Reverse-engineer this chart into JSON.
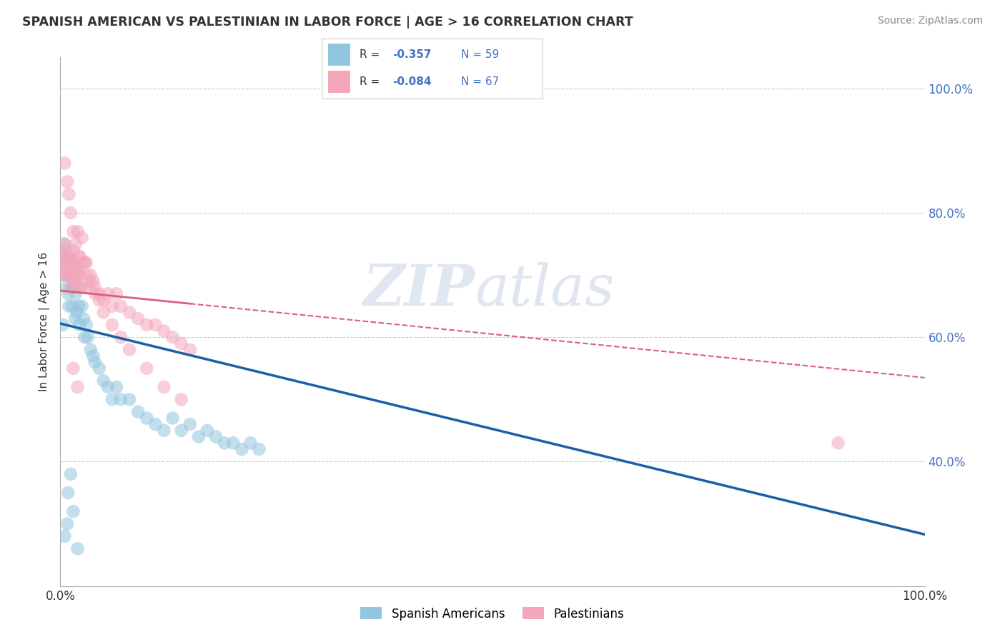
{
  "title": "SPANISH AMERICAN VS PALESTINIAN IN LABOR FORCE | AGE > 16 CORRELATION CHART",
  "source": "Source: ZipAtlas.com",
  "ylabel": "In Labor Force | Age > 16",
  "xlim": [
    0,
    1.0
  ],
  "ylim": [
    0.2,
    1.05
  ],
  "x_tick_positions": [
    0.0,
    1.0
  ],
  "x_tick_labels": [
    "0.0%",
    "100.0%"
  ],
  "y_tick_vals_right": [
    0.4,
    0.6,
    0.8,
    1.0
  ],
  "y_tick_labels_right": [
    "40.0%",
    "60.0%",
    "80.0%",
    "100.0%"
  ],
  "blue_color": "#92c5de",
  "pink_color": "#f4a6bb",
  "line_blue": "#1a5fa8",
  "line_pink": "#d9607a",
  "background_color": "#ffffff",
  "grid_color": "#cccccc",
  "sa_x": [
    0.002,
    0.003,
    0.004,
    0.005,
    0.006,
    0.007,
    0.008,
    0.009,
    0.01,
    0.01,
    0.011,
    0.012,
    0.013,
    0.014,
    0.015,
    0.016,
    0.017,
    0.018,
    0.019,
    0.02,
    0.021,
    0.022,
    0.023,
    0.025,
    0.027,
    0.028,
    0.03,
    0.032,
    0.035,
    0.038,
    0.04,
    0.045,
    0.05,
    0.055,
    0.06,
    0.065,
    0.07,
    0.08,
    0.09,
    0.1,
    0.11,
    0.12,
    0.13,
    0.14,
    0.15,
    0.16,
    0.17,
    0.18,
    0.19,
    0.2,
    0.21,
    0.22,
    0.23,
    0.005,
    0.008,
    0.015,
    0.02,
    0.012,
    0.009
  ],
  "sa_y": [
    0.72,
    0.62,
    0.7,
    0.75,
    0.73,
    0.68,
    0.72,
    0.67,
    0.7,
    0.65,
    0.73,
    0.7,
    0.68,
    0.65,
    0.72,
    0.68,
    0.63,
    0.67,
    0.64,
    0.7,
    0.65,
    0.62,
    0.68,
    0.65,
    0.63,
    0.6,
    0.62,
    0.6,
    0.58,
    0.57,
    0.56,
    0.55,
    0.53,
    0.52,
    0.5,
    0.52,
    0.5,
    0.5,
    0.48,
    0.47,
    0.46,
    0.45,
    0.47,
    0.45,
    0.46,
    0.44,
    0.45,
    0.44,
    0.43,
    0.43,
    0.42,
    0.43,
    0.42,
    0.28,
    0.3,
    0.32,
    0.26,
    0.38,
    0.35
  ],
  "pal_x": [
    0.002,
    0.003,
    0.004,
    0.005,
    0.006,
    0.007,
    0.008,
    0.009,
    0.01,
    0.011,
    0.012,
    0.013,
    0.014,
    0.015,
    0.016,
    0.017,
    0.018,
    0.019,
    0.02,
    0.021,
    0.022,
    0.023,
    0.025,
    0.027,
    0.03,
    0.032,
    0.035,
    0.038,
    0.04,
    0.045,
    0.05,
    0.055,
    0.06,
    0.065,
    0.07,
    0.08,
    0.09,
    0.1,
    0.11,
    0.12,
    0.13,
    0.14,
    0.15,
    0.005,
    0.008,
    0.01,
    0.012,
    0.015,
    0.018,
    0.02,
    0.022,
    0.025,
    0.028,
    0.03,
    0.035,
    0.04,
    0.045,
    0.05,
    0.06,
    0.07,
    0.08,
    0.1,
    0.12,
    0.14,
    0.015,
    0.02,
    0.9
  ],
  "pal_y": [
    0.72,
    0.7,
    0.73,
    0.75,
    0.71,
    0.74,
    0.7,
    0.73,
    0.72,
    0.7,
    0.68,
    0.72,
    0.7,
    0.74,
    0.71,
    0.69,
    0.72,
    0.7,
    0.68,
    0.71,
    0.73,
    0.7,
    0.68,
    0.72,
    0.7,
    0.68,
    0.7,
    0.69,
    0.68,
    0.67,
    0.66,
    0.67,
    0.65,
    0.67,
    0.65,
    0.64,
    0.63,
    0.62,
    0.62,
    0.61,
    0.6,
    0.59,
    0.58,
    0.88,
    0.85,
    0.83,
    0.8,
    0.77,
    0.75,
    0.77,
    0.73,
    0.76,
    0.72,
    0.72,
    0.69,
    0.67,
    0.66,
    0.64,
    0.62,
    0.6,
    0.58,
    0.55,
    0.52,
    0.5,
    0.55,
    0.52,
    0.43
  ]
}
